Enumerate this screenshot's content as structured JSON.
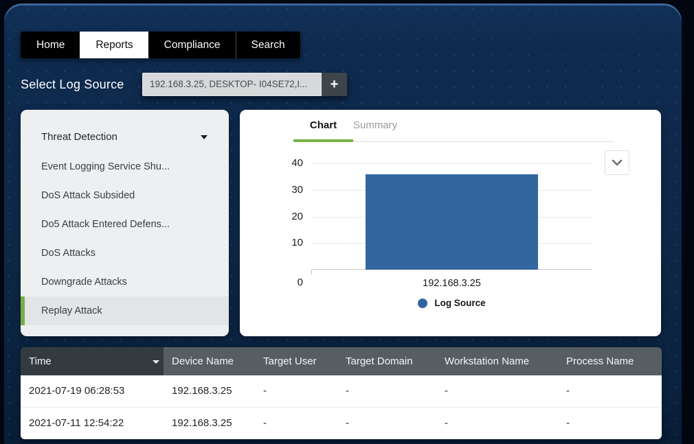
{
  "nav": {
    "tabs": [
      {
        "label": "Home",
        "active": false
      },
      {
        "label": "Reports",
        "active": true
      },
      {
        "label": "Compliance",
        "active": false
      },
      {
        "label": "Search",
        "active": false
      }
    ]
  },
  "log_source": {
    "label": "Select Log Source",
    "value": "192.168.3.25, DESKTOP- I04SE72,I...",
    "add_button_label": "+"
  },
  "sidebar": {
    "header": {
      "label": "Threat Detection"
    },
    "items": [
      {
        "label": "Event Logging Service Shu...",
        "selected": false
      },
      {
        "label": "DoS Attack Subsided",
        "selected": false
      },
      {
        "label": "Do5 Attack Entered Defens...",
        "selected": false
      },
      {
        "label": "DoS Attacks",
        "selected": false
      },
      {
        "label": "Downgrade Attacks",
        "selected": false
      },
      {
        "label": "Replay Attack",
        "selected": true
      }
    ]
  },
  "panel": {
    "tabs": [
      {
        "label": "Chart",
        "active": true
      },
      {
        "label": "Summary",
        "active": false
      }
    ]
  },
  "chart_data": {
    "type": "bar",
    "title": "",
    "categories": [
      "192.168.3.25"
    ],
    "values": [
      36
    ],
    "series_name": "Log Source",
    "legend_label": "Log Source",
    "xlabel": "",
    "ylabel": "",
    "ylim": [
      0,
      40
    ],
    "yticks": [
      0,
      10,
      20,
      30,
      40
    ],
    "grid": true,
    "legend_position": "bottom",
    "bar_color": "#33669f"
  },
  "table": {
    "columns": [
      {
        "label": "Time",
        "has_dropdown": true
      },
      {
        "label": "Device Name",
        "has_dropdown": false
      },
      {
        "label": "Target User",
        "has_dropdown": false
      },
      {
        "label": "Target Domain",
        "has_dropdown": false
      },
      {
        "label": "Workstation Name",
        "has_dropdown": false
      },
      {
        "label": "Process Name",
        "has_dropdown": false
      }
    ],
    "rows": [
      [
        "2021-07-19 06:28:53",
        "192.168.3.25",
        "-",
        "-",
        "-",
        "-"
      ],
      [
        "2021-07-11 12:54:22",
        "192.168.3.25",
        "-",
        "-",
        "-",
        "-"
      ]
    ]
  },
  "colors": {
    "accent_green": "#76b043",
    "bar_blue": "#33669f",
    "background_navy": "#0d2847",
    "table_header_dark": "#343b40",
    "table_header_light": "#575e63"
  }
}
